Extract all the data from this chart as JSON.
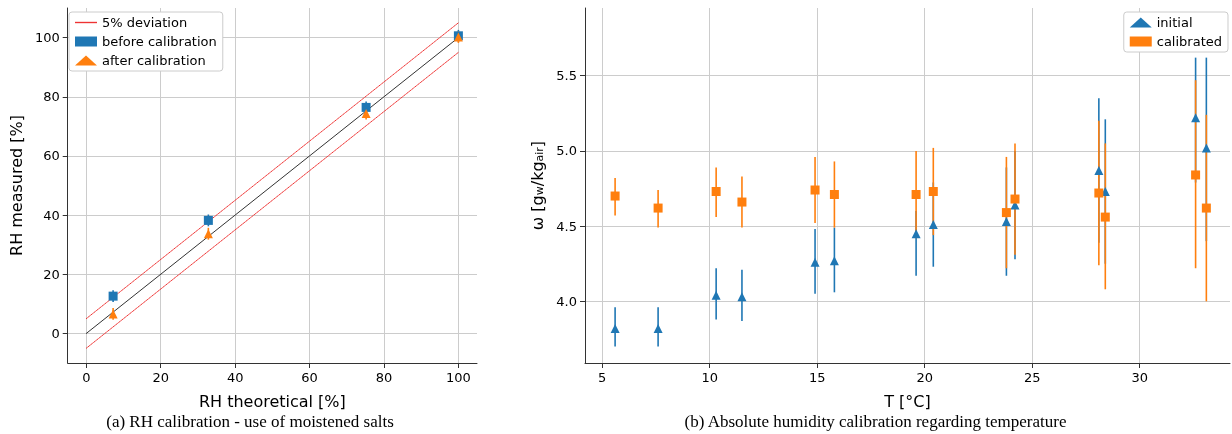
{
  "chart_data": [
    {
      "type": "scatter",
      "xlabel": "RH theoretical [%]",
      "ylabel": "RH measured [%]",
      "xlim": [
        -5,
        105
      ],
      "ylim": [
        -10,
        110
      ],
      "xticks": [
        0,
        20,
        40,
        60,
        80,
        100
      ],
      "yticks": [
        0,
        20,
        40,
        60,
        80,
        100
      ],
      "grid": true,
      "legend": "top left",
      "annotations": [
        "(a) RH calibration - use of moistened salts"
      ],
      "series": [
        {
          "type": "line",
          "color": "#333333",
          "x": [
            0,
            100
          ],
          "values": [
            0,
            100
          ],
          "marker": "none",
          "line_style": "solid"
        },
        {
          "type": "line",
          "name": "5% deviation",
          "color": "#ee3333",
          "x": [
            0,
            100
          ],
          "values": [
            5,
            105
          ],
          "marker": "none",
          "line_style": "dotted"
        },
        {
          "type": "line",
          "color": "#ee3333",
          "x": [
            0,
            100
          ],
          "values": [
            -5,
            95
          ],
          "marker": "none",
          "line_style": "dotted"
        },
        {
          "name": "before calibration",
          "color": "#1f77b4",
          "marker": "square",
          "x": [
            7.2,
            32.8,
            75.2,
            100
          ],
          "values": [
            12.6,
            38.2,
            76.4,
            100.6
          ],
          "errors": [
            2,
            2,
            2,
            2
          ]
        },
        {
          "name": "after calibration",
          "color": "#ff7f0e",
          "marker": "triangle",
          "x": [
            7.2,
            32.8,
            75.2,
            100
          ],
          "values": [
            6.6,
            33.7,
            74.3,
            100.2
          ],
          "errors": [
            2,
            2,
            2,
            2
          ]
        }
      ]
    },
    {
      "type": "scatter",
      "xlabel": "T [°C]",
      "ylabel": "ω [g$_{w}$/kg$_{air}$]",
      "xlim": [
        4.2,
        34.2
      ],
      "ylim": [
        3.59,
        5.95
      ],
      "xticks": [
        5,
        10,
        15,
        20,
        25,
        30
      ],
      "yticks": [
        {
          "value": 4,
          "label": "4.0"
        },
        4.5,
        {
          "value": 5,
          "label": "5.0"
        },
        5.5
      ],
      "grid": true,
      "legend": "top right",
      "annotations": [
        "(b) Absolute humidity calibration regarding temperature"
      ],
      "series": [
        {
          "name": "initial",
          "color": "#1f77b4",
          "marker": "triangle",
          "x": [
            5.6,
            7.6,
            10.3,
            11.5,
            14.9,
            15.8,
            19.6,
            20.4,
            23.8,
            24.2,
            28.1,
            28.4,
            32.6,
            33.1
          ],
          "values": [
            3.82,
            3.82,
            4.04,
            4.03,
            4.26,
            4.27,
            4.45,
            4.51,
            4.53,
            4.64,
            4.87,
            4.73,
            5.22,
            5.02
          ],
          "errors": [
            [
              3.7,
              3.96
            ],
            [
              3.7,
              3.96
            ],
            [
              3.88,
              4.22
            ],
            [
              3.87,
              4.21
            ],
            [
              4.05,
              4.48
            ],
            [
              4.06,
              4.49
            ],
            [
              4.17,
              4.6
            ],
            [
              4.23,
              4.79
            ],
            [
              4.17,
              4.89
            ],
            [
              4.28,
              5.0
            ],
            [
              4.39,
              5.35
            ],
            [
              4.25,
              5.21
            ],
            [
              4.79,
              5.62
            ],
            [
              4.4,
              5.62
            ]
          ]
        },
        {
          "name": "calibrated",
          "color": "#ff7f0e",
          "marker": "square",
          "x": [
            5.6,
            7.6,
            10.3,
            11.5,
            14.9,
            15.8,
            19.6,
            20.4,
            23.8,
            24.2,
            28.1,
            28.4,
            32.6,
            33.1
          ],
          "values": [
            4.7,
            4.62,
            4.73,
            4.66,
            4.74,
            4.71,
            4.71,
            4.73,
            4.59,
            4.68,
            4.72,
            4.56,
            4.84,
            4.62
          ],
          "errors": [
            [
              4.57,
              4.82
            ],
            [
              4.49,
              4.74
            ],
            [
              4.56,
              4.89
            ],
            [
              4.49,
              4.83
            ],
            [
              4.52,
              4.96
            ],
            [
              4.49,
              4.93
            ],
            [
              4.42,
              5.0
            ],
            [
              4.44,
              5.02
            ],
            [
              4.22,
              4.96
            ],
            [
              4.31,
              5.05
            ],
            [
              4.24,
              5.2
            ],
            [
              4.08,
              5.05
            ],
            [
              4.22,
              5.47
            ],
            [
              4.0,
              5.24
            ]
          ]
        }
      ]
    }
  ]
}
